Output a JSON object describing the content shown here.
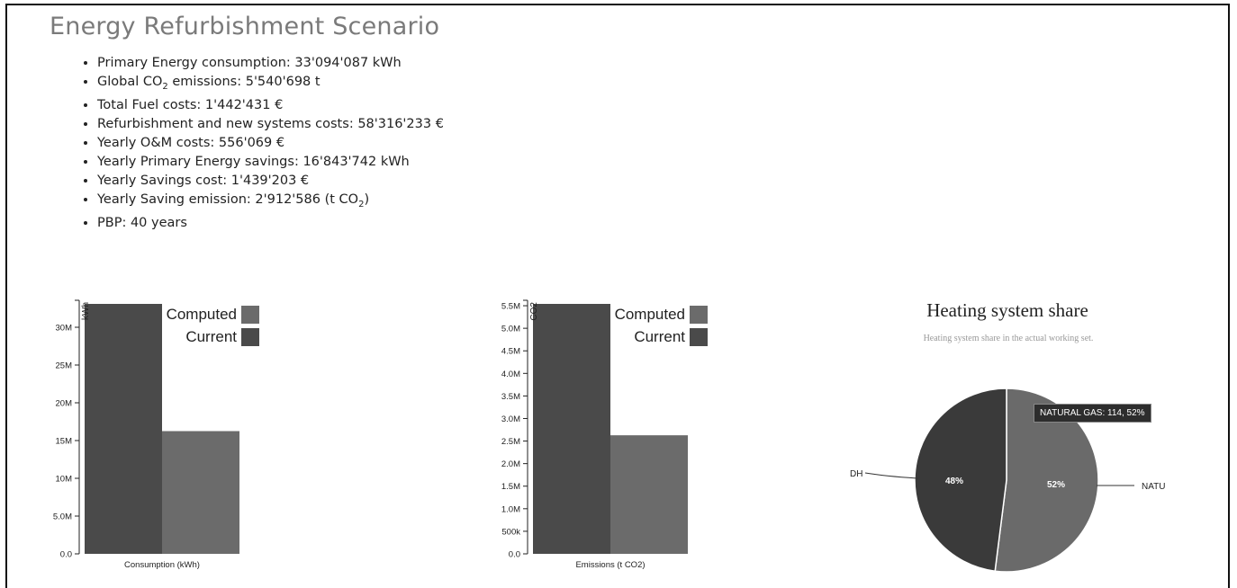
{
  "page": {
    "title": "Energy Refurbishment Scenario"
  },
  "metrics": [
    {
      "label": "Primary Energy consumption",
      "value": "33'094'087 kWh"
    },
    {
      "label": "Global CO",
      "sub": "2",
      "label_after": " emissions",
      "value": "5'540'698 t"
    },
    {
      "label": "Total Fuel costs",
      "value": "1'442'431 €"
    },
    {
      "label": "Refurbishment and new systems costs",
      "value": "58'316'233 €"
    },
    {
      "label": "Yearly O&M costs",
      "value": "556'069 €"
    },
    {
      "label": "Yearly Primary Energy savings",
      "value": "16'843'742 kWh"
    },
    {
      "label": "Yearly Savings cost",
      "value": "1'439'203 €"
    },
    {
      "label": "Yearly Saving emission",
      "value": "2'912'586 (t CO",
      "value_sub": "2",
      "value_after": ")"
    },
    {
      "label": "PBP",
      "value": "40 years"
    }
  ],
  "colors": {
    "current": "#4a4a4a",
    "computed": "#6b6b6b",
    "pie_dh": "#3a3a3a",
    "pie_natural_gas": "#6a6a6a"
  },
  "chart_data": [
    {
      "type": "bar",
      "xlabel": "Consumption (kWh)",
      "ylabel": "kWh",
      "series": [
        {
          "name": "Current",
          "values": [
            33094087
          ]
        },
        {
          "name": "Computed",
          "values": [
            16250345
          ]
        }
      ],
      "legend": [
        "Computed",
        "Current"
      ],
      "ylim": [
        0,
        33094087
      ],
      "ticks": [
        0,
        5000000,
        10000000,
        15000000,
        20000000,
        25000000,
        30000000
      ],
      "tick_labels": [
        "0.0",
        "5.0M",
        "10M",
        "15M",
        "20M",
        "25M",
        "30M"
      ],
      "legend_position": "top-right"
    },
    {
      "type": "bar",
      "xlabel": "Emissions (t CO2)",
      "ylabel": "CO2",
      "series": [
        {
          "name": "Current",
          "values": [
            5540698
          ]
        },
        {
          "name": "Computed",
          "values": [
            2628112
          ]
        }
      ],
      "legend": [
        "Computed",
        "Current"
      ],
      "ylim": [
        0,
        5540698
      ],
      "ticks": [
        0,
        500000,
        1000000,
        1500000,
        2000000,
        2500000,
        3000000,
        3500000,
        4000000,
        4500000,
        5000000,
        5500000
      ],
      "tick_labels": [
        "0.0",
        "500k",
        "1.0M",
        "1.5M",
        "2.0M",
        "2.5M",
        "3.0M",
        "3.5M",
        "4.0M",
        "4.5M",
        "5.0M",
        "5.5M"
      ],
      "legend_position": "top-right"
    },
    {
      "type": "pie",
      "title": "Heating system share",
      "subtitle": "Heating system share in the actual working set.",
      "slices": [
        {
          "label": "DH",
          "percent": 48,
          "pct_label": "48%"
        },
        {
          "label": "NATU",
          "percent": 52,
          "pct_label": "52%"
        }
      ],
      "tooltip": "NATURAL GAS: 114, 52%"
    }
  ]
}
